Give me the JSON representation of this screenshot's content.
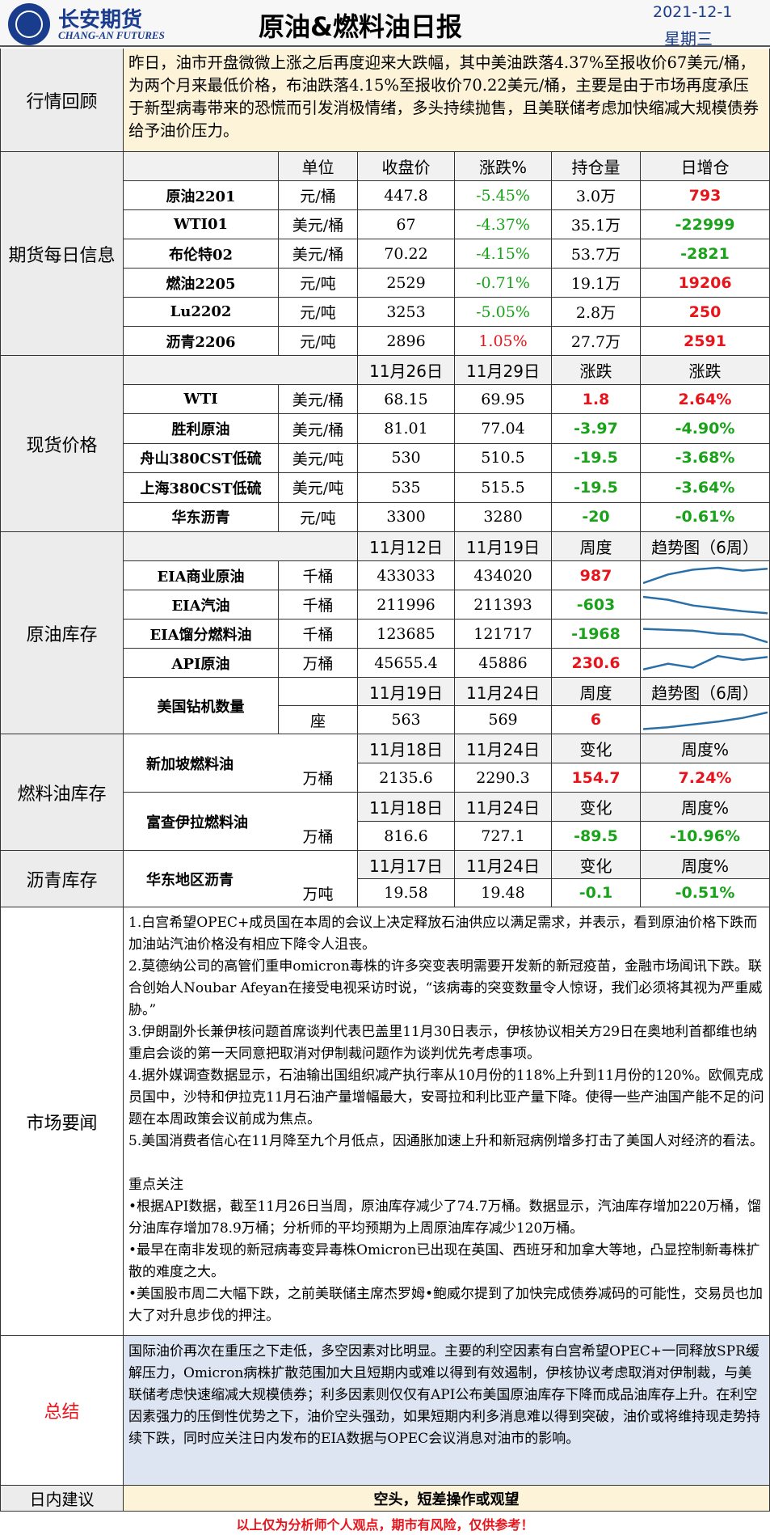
{
  "header": {
    "logo_cn": "长安期货",
    "logo_en": "CHANG-AN FUTURES",
    "title": "原油&燃料油日报",
    "date": "2021-12-1",
    "weekday": "星期三"
  },
  "review": {
    "label": "行情回顾",
    "text": "昨日，油市开盘微微上涨之后再度迎来大跌幅，其中美油跌落4.37%至报收价67美元/桶，为两个月来最低价格，布油跌落4.15%至报收价70.22美元/桶，主要是由于市场再度承压于新型病毒带来的恐慌而引发消极情绪，多头持续抛售，且美联储考虑加快缩减大规模债券给予油价压力。"
  },
  "futures": {
    "label": "期货每日信息",
    "headers": [
      "单位",
      "收盘价",
      "涨跌%",
      "持仓量",
      "日增仓"
    ],
    "rows": [
      {
        "name": "原油2201",
        "unit": "元/桶",
        "close": "447.8",
        "chg": "-5.45%",
        "oi": "3.0万",
        "inc": "793"
      },
      {
        "name": "WTI01",
        "unit": "美元/桶",
        "close": "67",
        "chg": "-4.37%",
        "oi": "35.1万",
        "inc": "-22999"
      },
      {
        "name": "布伦特02",
        "unit": "美元/桶",
        "close": "70.22",
        "chg": "-4.15%",
        "oi": "53.7万",
        "inc": "-2821"
      },
      {
        "name": "燃油2205",
        "unit": "元/吨",
        "close": "2529",
        "chg": "-0.71%",
        "oi": "19.1万",
        "inc": "19206"
      },
      {
        "name": "Lu2202",
        "unit": "元/吨",
        "close": "3253",
        "chg": "-5.05%",
        "oi": "2.8万",
        "inc": "250"
      },
      {
        "name": "沥青2206",
        "unit": "元/吨",
        "close": "2896",
        "chg": "1.05%",
        "oi": "27.7万",
        "inc": "2591"
      }
    ]
  },
  "spot": {
    "label": "现货价格",
    "headers": [
      "11月26日",
      "11月29日",
      "涨跌",
      "涨跌"
    ],
    "rows": [
      {
        "name": "WTI",
        "unit": "美元/桶",
        "v1": "68.15",
        "v2": "69.95",
        "chg": "1.8",
        "pct": "2.64%"
      },
      {
        "name": "胜利原油",
        "unit": "美元/桶",
        "v1": "81.01",
        "v2": "77.04",
        "chg": "-3.97",
        "pct": "-4.90%"
      },
      {
        "name": "舟山380CST低硫",
        "unit": "美元/吨",
        "v1": "530",
        "v2": "510.5",
        "chg": "-19.5",
        "pct": "-3.68%"
      },
      {
        "name": "上海380CST低硫",
        "unit": "美元/吨",
        "v1": "535",
        "v2": "515.5",
        "chg": "-19.5",
        "pct": "-3.64%"
      },
      {
        "name": "华东沥青",
        "unit": "元/吨",
        "v1": "3300",
        "v2": "3280",
        "chg": "-20",
        "pct": "-0.61%"
      }
    ]
  },
  "inventory": {
    "label": "原油库存",
    "headers": [
      "11月12日",
      "11月19日",
      "周度",
      "趋势图（6周）"
    ],
    "rows": [
      {
        "name": "EIA商业原油",
        "unit": "千桶",
        "v1": "433033",
        "v2": "434020",
        "chg": "987",
        "trend": [
          0.15,
          0.6,
          0.85,
          0.95,
          0.8,
          0.9
        ]
      },
      {
        "name": "EIA汽油",
        "unit": "千桶",
        "v1": "211996",
        "v2": "211393",
        "chg": "-603",
        "trend": [
          0.95,
          0.8,
          0.5,
          0.35,
          0.2,
          0.1
        ]
      },
      {
        "name": "EIA馏分燃料油",
        "unit": "千桶",
        "v1": "123685",
        "v2": "121717",
        "chg": "-1968",
        "trend": [
          0.8,
          0.75,
          0.7,
          0.55,
          0.5,
          0.1
        ]
      },
      {
        "name": "API原油",
        "unit": "万桶",
        "v1": "45655.4",
        "v2": "45886",
        "chg": "230.6",
        "trend": [
          0.2,
          0.5,
          0.3,
          0.9,
          0.7,
          0.85
        ]
      }
    ],
    "rig": {
      "name": "美国钻机数量",
      "unit": "座",
      "headers": [
        "11月19日",
        "11月24日",
        "周度",
        "趋势图（6周）"
      ],
      "v1": "563",
      "v2": "569",
      "chg": "6",
      "trend": [
        0.05,
        0.15,
        0.3,
        0.45,
        0.65,
        0.95
      ]
    }
  },
  "fuel_inventory": {
    "label": "燃料油库存",
    "singapore": {
      "name": "新加坡燃料油",
      "headers": [
        "11月18日",
        "11月24日",
        "变化",
        "周度%"
      ],
      "unit": "万桶",
      "v1": "2135.6",
      "v2": "2290.3",
      "chg": "154.7",
      "pct": "7.24%"
    },
    "fujairah": {
      "name": "富查伊拉燃料油",
      "headers": [
        "11月18日",
        "11月24日",
        "变化",
        "周度%"
      ],
      "unit": "万桶",
      "v1": "816.6",
      "v2": "727.1",
      "chg": "-89.5",
      "pct": "-10.96%"
    }
  },
  "asphalt_inventory": {
    "label": "沥青库存",
    "name": "华东地区沥青",
    "headers": [
      "11月17日",
      "11月24日",
      "变化",
      "周度%"
    ],
    "unit": "万吨",
    "v1": "19.58",
    "v2": "19.48",
    "chg": "-0.1",
    "pct": "-0.51%"
  },
  "news": {
    "label": "市场要闻",
    "paragraphs": [
      "1.白宫希望OPEC+成员国在本周的会议上决定释放石油供应以满足需求，并表示，看到原油价格下跌而加油站汽油价格没有相应下降令人沮丧。",
      "2.莫德纳公司的高管们重申omicron毒株的许多突变表明需要开发新的新冠疫苗，金融市场闻讯下跌。联合创始人Noubar Afeyan在接受电视采访时说，“该病毒的突变数量令人惊讶，我们必须将其视为严重威胁。”",
      "3.伊朗副外长兼伊核问题首席谈判代表巴盖里11月30日表示，伊核协议相关方29日在奥地利首都维也纳重启会谈的第一天同意把取消对伊制裁问题作为谈判优先考虑事项。",
      "4.据外媒调查数据显示，石油输出国组织减产执行率从10月份的118%上升到11月份的120%。欧佩克成员国中，沙特和伊拉克11月石油产量增幅最大，安哥拉和利比亚产量下降。使得一些产油国产能不足的问题在本周政策会议前成为焦点。",
      "5.美国消费者信心在11月降至九个月低点，因通胀加速上升和新冠病例增多打击了美国人对经济的看法。"
    ],
    "focus_title": "重点关注",
    "focus": [
      "•根据API数据，截至11月26日当周，原油库存减少了74.7万桶。数据显示，汽油库存增加220万桶，馏分油库存增加78.9万桶；分析师的平均预期为上周原油库存减少120万桶。",
      "•最早在南非发现的新冠病毒变异毒株Omicron已出现在英国、西班牙和加拿大等地，凸显控制新毒株扩散的难度之大。",
      "•美国股市周二大幅下跌，之前美联储主席杰罗姆•鲍威尔提到了加快完成债券减码的可能性，交易员也加大了对升息步伐的押注。"
    ]
  },
  "summary": {
    "label": "总结",
    "text": "国际油价再次在重压之下走低，多空因素对比明显。主要的利空因素有白宫希望OPEC+一同释放SPR缓解压力，Omicron病株扩散范围加大且短期内或难以得到有效遏制，伊核协议考虑取消对伊制裁，与美联储考虑快速缩减大规模债券；利多因素则仅仅有API公布美国原油库存下降而成品油库存上升。在利空因素强力的压倒性优势之下，油价空头强劲，如果短期内利多消息难以得到突破，油价或将维持现走势持续下跌，同时应关注日内发布的EIA数据与OPEC会议消息对油市的影响。"
  },
  "advice": {
    "label": "日内建议",
    "text": "空头，短差操作或观望"
  },
  "footer": "以上仅为分析师个人观点，期市有风险，仅供参考！",
  "colors": {
    "red": "#e8141c",
    "green": "#1aa31a",
    "brand": "#1a3c8c",
    "trend": "#2a6fa8"
  }
}
